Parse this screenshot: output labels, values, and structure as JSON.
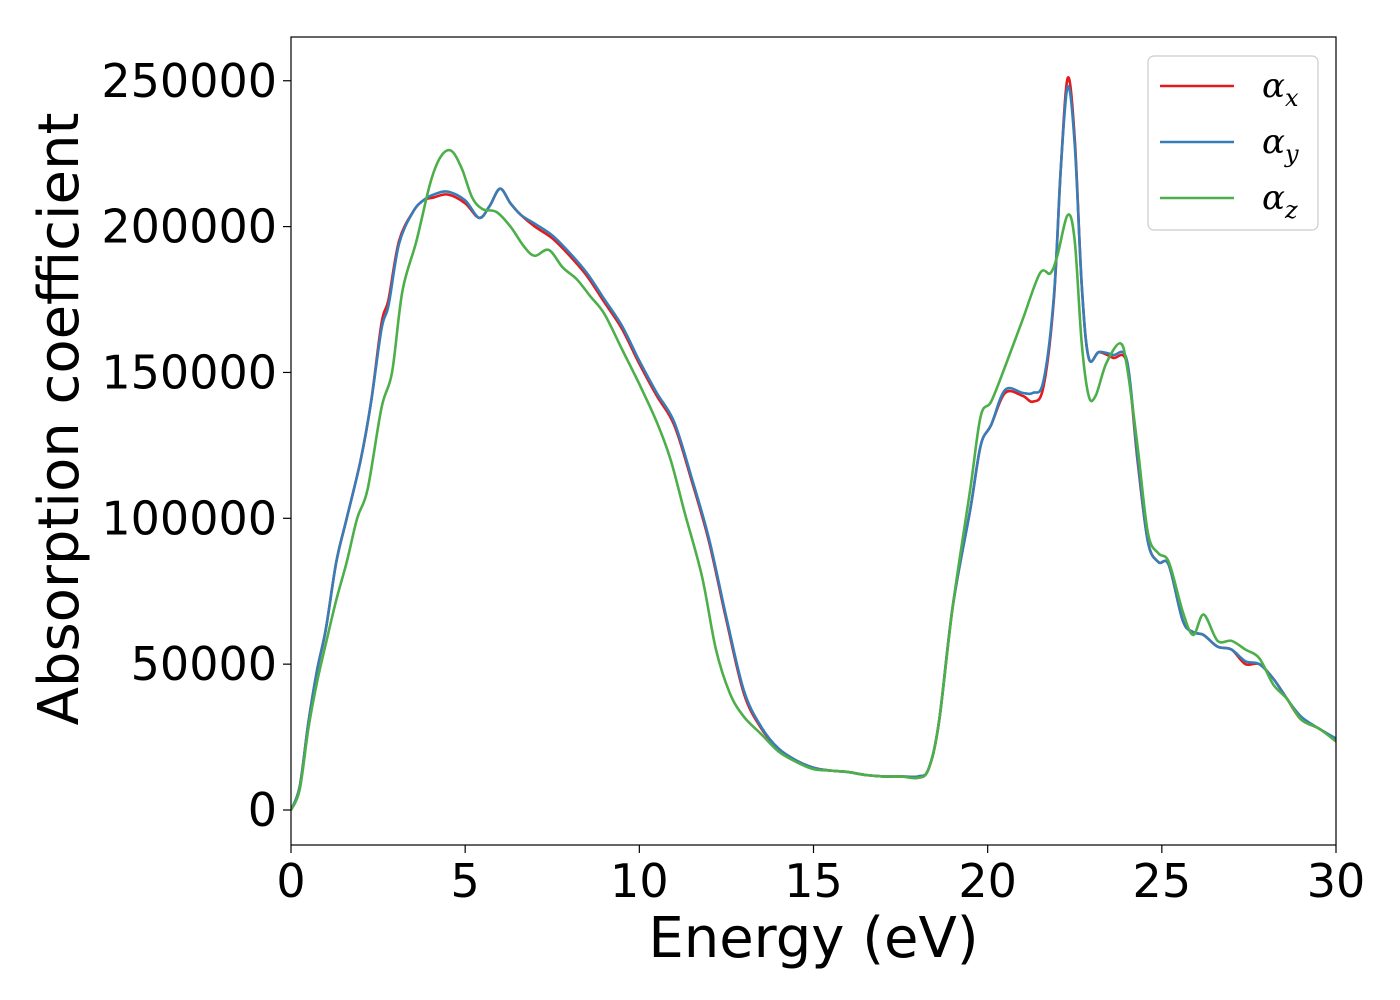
{
  "chart_data": {
    "type": "line",
    "title": "",
    "xlabel": "Energy (eV)",
    "ylabel": "Absorption coefficient",
    "xlim": [
      0,
      30
    ],
    "ylim": [
      -12000,
      265000
    ],
    "xticks": [
      0,
      5,
      10,
      15,
      20,
      25,
      30
    ],
    "yticks": [
      0,
      50000,
      100000,
      150000,
      200000,
      250000
    ],
    "grid": false,
    "legend_position": "top-right",
    "series": [
      {
        "name": "αx",
        "name_base": "α",
        "name_sub": "x",
        "color": "#e41a1c",
        "points": [
          [
            0,
            0
          ],
          [
            0.25,
            8000
          ],
          [
            0.5,
            30000
          ],
          [
            0.75,
            48000
          ],
          [
            1.0,
            62000
          ],
          [
            1.3,
            85000
          ],
          [
            1.6,
            100000
          ],
          [
            2.0,
            120000
          ],
          [
            2.3,
            140000
          ],
          [
            2.6,
            167000
          ],
          [
            2.8,
            175000
          ],
          [
            3.1,
            195000
          ],
          [
            3.5,
            205000
          ],
          [
            3.8,
            209000
          ],
          [
            4.1,
            210000
          ],
          [
            4.5,
            211000
          ],
          [
            5.0,
            208000
          ],
          [
            5.4,
            203000
          ],
          [
            5.7,
            207000
          ],
          [
            6.0,
            213000
          ],
          [
            6.3,
            208000
          ],
          [
            6.6,
            204000
          ],
          [
            7.0,
            200000
          ],
          [
            7.5,
            196000
          ],
          [
            8.0,
            190000
          ],
          [
            8.5,
            183000
          ],
          [
            9.0,
            174000
          ],
          [
            9.5,
            165000
          ],
          [
            10.0,
            153000
          ],
          [
            10.5,
            142000
          ],
          [
            11.0,
            132000
          ],
          [
            11.5,
            113000
          ],
          [
            12.0,
            92000
          ],
          [
            12.5,
            65000
          ],
          [
            13.0,
            40000
          ],
          [
            13.5,
            28000
          ],
          [
            14.0,
            21000
          ],
          [
            14.5,
            17000
          ],
          [
            15.0,
            14500
          ],
          [
            15.5,
            13500
          ],
          [
            16.0,
            13000
          ],
          [
            16.5,
            12000
          ],
          [
            17.0,
            11500
          ],
          [
            17.5,
            11500
          ],
          [
            18.0,
            11500
          ],
          [
            18.3,
            14000
          ],
          [
            18.6,
            30000
          ],
          [
            19.0,
            70000
          ],
          [
            19.5,
            103000
          ],
          [
            19.8,
            125000
          ],
          [
            20.1,
            132000
          ],
          [
            20.5,
            143000
          ],
          [
            21.0,
            142000
          ],
          [
            21.3,
            140000
          ],
          [
            21.6,
            145000
          ],
          [
            21.9,
            175000
          ],
          [
            22.1,
            220000
          ],
          [
            22.3,
            251000
          ],
          [
            22.5,
            230000
          ],
          [
            22.7,
            180000
          ],
          [
            22.9,
            155000
          ],
          [
            23.2,
            157000
          ],
          [
            23.6,
            155000
          ],
          [
            24.0,
            153000
          ],
          [
            24.3,
            120000
          ],
          [
            24.6,
            92000
          ],
          [
            24.9,
            85000
          ],
          [
            25.2,
            84000
          ],
          [
            25.6,
            65000
          ],
          [
            25.9,
            61000
          ],
          [
            26.2,
            60000
          ],
          [
            26.6,
            56000
          ],
          [
            27.0,
            55000
          ],
          [
            27.4,
            50000
          ],
          [
            27.8,
            50000
          ],
          [
            28.2,
            45000
          ],
          [
            28.6,
            38000
          ],
          [
            29.0,
            31000
          ],
          [
            29.5,
            28000
          ],
          [
            30.0,
            24000
          ]
        ]
      },
      {
        "name": "αy",
        "name_base": "α",
        "name_sub": "y",
        "color": "#377eb8",
        "points": [
          [
            0,
            0
          ],
          [
            0.25,
            8000
          ],
          [
            0.5,
            30000
          ],
          [
            0.75,
            48000
          ],
          [
            1.0,
            62000
          ],
          [
            1.3,
            85000
          ],
          [
            1.6,
            100000
          ],
          [
            2.0,
            120000
          ],
          [
            2.3,
            140000
          ],
          [
            2.6,
            165000
          ],
          [
            2.8,
            173000
          ],
          [
            3.1,
            194000
          ],
          [
            3.5,
            205000
          ],
          [
            3.8,
            209000
          ],
          [
            4.1,
            211000
          ],
          [
            4.5,
            212000
          ],
          [
            5.0,
            209000
          ],
          [
            5.4,
            203000
          ],
          [
            5.7,
            207000
          ],
          [
            6.0,
            213000
          ],
          [
            6.3,
            208000
          ],
          [
            6.6,
            204000
          ],
          [
            7.0,
            201000
          ],
          [
            7.5,
            197000
          ],
          [
            8.0,
            191000
          ],
          [
            8.5,
            184000
          ],
          [
            9.0,
            175000
          ],
          [
            9.5,
            166000
          ],
          [
            10.0,
            154000
          ],
          [
            10.5,
            143000
          ],
          [
            11.0,
            133000
          ],
          [
            11.5,
            114000
          ],
          [
            12.0,
            93000
          ],
          [
            12.5,
            66000
          ],
          [
            13.0,
            41000
          ],
          [
            13.5,
            28500
          ],
          [
            14.0,
            21000
          ],
          [
            14.5,
            17000
          ],
          [
            15.0,
            14500
          ],
          [
            15.5,
            13500
          ],
          [
            16.0,
            13000
          ],
          [
            16.5,
            12000
          ],
          [
            17.0,
            11500
          ],
          [
            17.5,
            11500
          ],
          [
            18.0,
            11500
          ],
          [
            18.3,
            14000
          ],
          [
            18.6,
            30000
          ],
          [
            19.0,
            70000
          ],
          [
            19.5,
            103000
          ],
          [
            19.8,
            125000
          ],
          [
            20.1,
            132000
          ],
          [
            20.5,
            144000
          ],
          [
            21.0,
            143000
          ],
          [
            21.3,
            143000
          ],
          [
            21.6,
            147000
          ],
          [
            21.9,
            176000
          ],
          [
            22.1,
            220000
          ],
          [
            22.3,
            248000
          ],
          [
            22.5,
            228000
          ],
          [
            22.7,
            180000
          ],
          [
            22.9,
            155000
          ],
          [
            23.2,
            157000
          ],
          [
            23.6,
            156000
          ],
          [
            24.0,
            154000
          ],
          [
            24.3,
            121000
          ],
          [
            24.6,
            92000
          ],
          [
            24.9,
            85000
          ],
          [
            25.2,
            84000
          ],
          [
            25.6,
            65000
          ],
          [
            25.9,
            61000
          ],
          [
            26.2,
            60000
          ],
          [
            26.6,
            56000
          ],
          [
            27.0,
            55000
          ],
          [
            27.4,
            51000
          ],
          [
            27.8,
            50000
          ],
          [
            28.2,
            45000
          ],
          [
            28.6,
            38000
          ],
          [
            29.0,
            32000
          ],
          [
            29.5,
            28000
          ],
          [
            30.0,
            24500
          ]
        ]
      },
      {
        "name": "αz",
        "name_base": "α",
        "name_sub": "z",
        "color": "#4daf4a",
        "points": [
          [
            0,
            0
          ],
          [
            0.25,
            7000
          ],
          [
            0.5,
            28000
          ],
          [
            0.75,
            44000
          ],
          [
            1.0,
            57000
          ],
          [
            1.3,
            72000
          ],
          [
            1.6,
            85000
          ],
          [
            1.9,
            100000
          ],
          [
            2.2,
            110000
          ],
          [
            2.6,
            138000
          ],
          [
            2.9,
            150000
          ],
          [
            3.2,
            178000
          ],
          [
            3.6,
            195000
          ],
          [
            4.0,
            215000
          ],
          [
            4.3,
            224000
          ],
          [
            4.6,
            226000
          ],
          [
            4.9,
            220000
          ],
          [
            5.2,
            210000
          ],
          [
            5.5,
            206000
          ],
          [
            5.9,
            205000
          ],
          [
            6.3,
            200000
          ],
          [
            6.7,
            193000
          ],
          [
            7.0,
            190000
          ],
          [
            7.4,
            192000
          ],
          [
            7.8,
            186000
          ],
          [
            8.2,
            182000
          ],
          [
            8.6,
            176000
          ],
          [
            9.0,
            170000
          ],
          [
            9.5,
            158000
          ],
          [
            10.0,
            146000
          ],
          [
            10.5,
            133000
          ],
          [
            10.9,
            120000
          ],
          [
            11.3,
            102000
          ],
          [
            11.8,
            80000
          ],
          [
            12.2,
            55000
          ],
          [
            12.6,
            40000
          ],
          [
            13.0,
            32000
          ],
          [
            13.5,
            26000
          ],
          [
            14.0,
            20000
          ],
          [
            14.5,
            16500
          ],
          [
            15.0,
            14000
          ],
          [
            15.5,
            13500
          ],
          [
            16.0,
            13000
          ],
          [
            16.5,
            12000
          ],
          [
            17.0,
            11500
          ],
          [
            17.5,
            11500
          ],
          [
            18.0,
            11000
          ],
          [
            18.3,
            14000
          ],
          [
            18.6,
            30000
          ],
          [
            19.0,
            70000
          ],
          [
            19.5,
            110000
          ],
          [
            19.8,
            135000
          ],
          [
            20.1,
            140000
          ],
          [
            20.5,
            152000
          ],
          [
            21.0,
            168000
          ],
          [
            21.5,
            184000
          ],
          [
            21.8,
            184000
          ],
          [
            22.0,
            190000
          ],
          [
            22.3,
            204000
          ],
          [
            22.5,
            195000
          ],
          [
            22.7,
            160000
          ],
          [
            22.9,
            142000
          ],
          [
            23.1,
            142000
          ],
          [
            23.4,
            153000
          ],
          [
            23.8,
            160000
          ],
          [
            24.0,
            152000
          ],
          [
            24.3,
            125000
          ],
          [
            24.6,
            95000
          ],
          [
            24.9,
            88000
          ],
          [
            25.2,
            85000
          ],
          [
            25.6,
            68000
          ],
          [
            25.9,
            60000
          ],
          [
            26.2,
            67000
          ],
          [
            26.6,
            58000
          ],
          [
            27.0,
            58000
          ],
          [
            27.4,
            55000
          ],
          [
            27.8,
            52000
          ],
          [
            28.2,
            43000
          ],
          [
            28.6,
            38000
          ],
          [
            29.0,
            31000
          ],
          [
            29.5,
            28000
          ],
          [
            30.0,
            23500
          ]
        ]
      }
    ]
  }
}
